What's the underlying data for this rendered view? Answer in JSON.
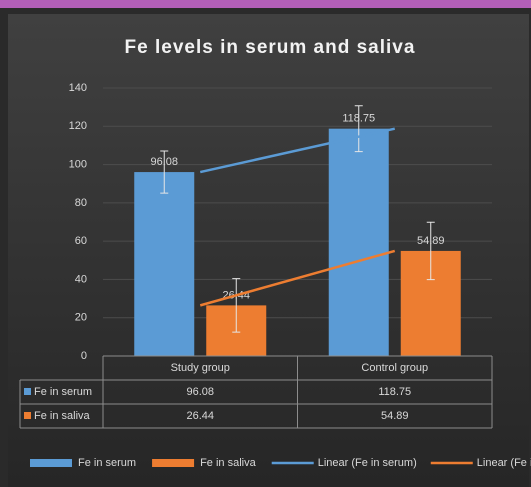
{
  "chart_data": {
    "type": "bar",
    "title": "Fe levels in serum and saliva",
    "categories": [
      "Study group",
      "Control group"
    ],
    "series": [
      {
        "name": "Fe in serum",
        "color": "#5b9bd5",
        "values": [
          96.08,
          118.75
        ],
        "errors": [
          11,
          12
        ],
        "trendline": "Linear (Fe in serum)"
      },
      {
        "name": "Fe in saliva",
        "color": "#ed7d31",
        "values": [
          26.44,
          54.89
        ],
        "errors": [
          14,
          15
        ],
        "trendline": "Linear (Fe in saliva)"
      }
    ],
    "ylim": [
      0,
      140
    ],
    "yticks": [
      0,
      20,
      40,
      60,
      80,
      100,
      120,
      140
    ],
    "grid": true,
    "data_table": true,
    "legend": "bottom"
  }
}
